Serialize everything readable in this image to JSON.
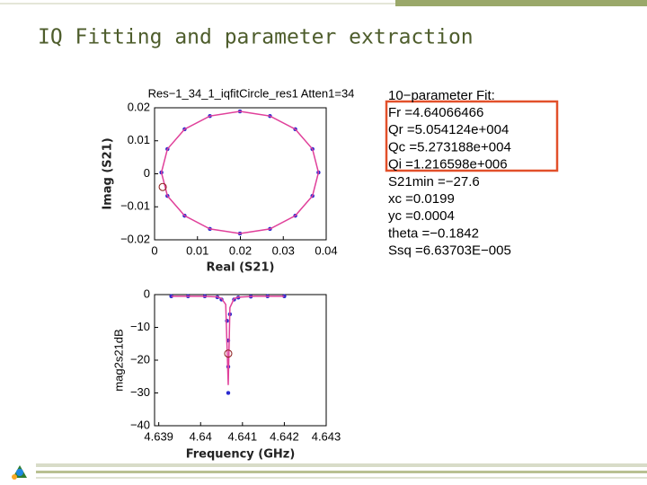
{
  "title": "IQ Fitting and parameter extraction",
  "fit_box": {
    "heading": "10−parameter Fit:",
    "lines": [
      "Fr =4.64066466",
      "Qr =5.054124e+004",
      "Qc =5.273188e+004",
      "Qi =1.216598e+006",
      "S21min =−27.6",
      "xc =0.0199",
      "yc =0.0004",
      "theta =−0.1842",
      "Ssq =6.63703E−005"
    ]
  },
  "chart_data": [
    {
      "type": "line",
      "title": "Res−1_34_1_iqfitCircle_res1 Atten1=34",
      "x_label": "Real (S21)",
      "y_label": "Imag (S21)",
      "xlim": [
        0,
        0.04
      ],
      "ylim": [
        -0.02,
        0.02
      ],
      "xticks": [
        0,
        0.01,
        0.02,
        0.03,
        0.04
      ],
      "yticks": [
        {
          "value": -0.02,
          "label": "−0.02"
        },
        {
          "value": -0.01,
          "label": "−0.01"
        },
        0,
        0.01,
        0.02
      ],
      "legend": false,
      "series": [
        {
          "mode": "markers",
          "color": "#2a2ad0",
          "x": [
            0.0382,
            0.0368,
            0.0328,
            0.0269,
            0.0199,
            0.0129,
            0.007,
            0.003,
            0.0016,
            0.003,
            0.007,
            0.0129,
            0.0199,
            0.0269,
            0.0328,
            0.0368
          ],
          "values": [
            0.0004,
            0.0075,
            0.0135,
            0.0175,
            0.0189,
            0.0175,
            0.0135,
            0.0075,
            0.0004,
            -0.0067,
            -0.0127,
            -0.0167,
            -0.0181,
            -0.0167,
            -0.0127,
            -0.0067
          ]
        },
        {
          "mode": "line",
          "color": "#e0409a",
          "x": [
            0.0382,
            0.0368,
            0.0328,
            0.0269,
            0.0199,
            0.0129,
            0.007,
            0.003,
            0.0016,
            0.003,
            0.007,
            0.0129,
            0.0199,
            0.0269,
            0.0328,
            0.0368,
            0.0382
          ],
          "values": [
            0.0004,
            0.0075,
            0.0135,
            0.0175,
            0.0189,
            0.0175,
            0.0135,
            0.0075,
            0.0004,
            -0.0067,
            -0.0127,
            -0.0167,
            -0.0181,
            -0.0167,
            -0.0127,
            -0.0067,
            0.0004
          ]
        },
        {
          "mode": "ring",
          "color": "#8b1a1a",
          "x": [
            0.0019
          ],
          "values": [
            -0.004
          ]
        }
      ]
    },
    {
      "type": "line",
      "x_label": "Frequency (GHz)",
      "y_label": "mag2s21dB",
      "xlim": [
        4.6389,
        4.643
      ],
      "ylim": [
        -40,
        0
      ],
      "xticks": [
        4.639,
        4.64,
        4.641,
        4.642,
        4.643
      ],
      "yticks": [
        {
          "value": -40,
          "label": "−40"
        },
        {
          "value": -30,
          "label": "−30"
        },
        {
          "value": -20,
          "label": "−20"
        },
        {
          "value": -10,
          "label": "−10"
        },
        0
      ],
      "legend": false,
      "series": [
        {
          "mode": "markers",
          "color": "#2a2ad0",
          "x": [
            4.6393,
            4.6397,
            4.6401,
            4.6404,
            4.6405,
            4.64063,
            4.64066,
            4.64066,
            4.64066,
            4.6407,
            4.6408,
            4.6409,
            4.6412,
            4.6416,
            4.642
          ],
          "values": [
            -0.5,
            -0.5,
            -0.5,
            -0.8,
            -1.5,
            -8,
            -14,
            -22,
            -30,
            -6,
            -1.5,
            -0.9,
            -0.6,
            -0.5,
            -0.5
          ]
        },
        {
          "mode": "line",
          "color": "#e0409a",
          "x": [
            4.6393,
            4.64,
            4.6404,
            4.6405,
            4.6406,
            4.64066,
            4.6407,
            4.6408,
            4.6409,
            4.6413,
            4.642
          ],
          "values": [
            -0.5,
            -0.5,
            -0.7,
            -1.2,
            -3,
            -27.6,
            -4,
            -1.2,
            -0.8,
            -0.5,
            -0.5
          ]
        },
        {
          "mode": "ring",
          "color": "#8b1a1a",
          "x": [
            4.64066
          ],
          "values": [
            -18
          ]
        }
      ]
    }
  ]
}
